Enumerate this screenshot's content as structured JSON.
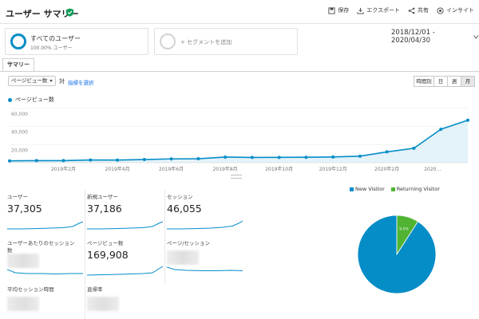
{
  "header": {
    "title": "ユーザー サマリー",
    "actions": [
      {
        "label": "保存",
        "icon": "save-icon"
      },
      {
        "label": "エクスポート",
        "icon": "export-icon"
      },
      {
        "label": "共有",
        "icon": "share-icon"
      },
      {
        "label": "インサイト",
        "icon": "insights-icon"
      }
    ]
  },
  "segments": {
    "active": {
      "name": "すべてのユーザー",
      "sub": "100.00% ユーザー"
    },
    "add_label": "+ セグメントを追加"
  },
  "date_range": "2018/12/01 - 2020/04/30",
  "tabs": {
    "summary": "サマリー"
  },
  "controls": {
    "metric": "ページビュー数",
    "vs": "対",
    "select_metric": "指標を選択",
    "periods": [
      "時間別",
      "日",
      "週",
      "月"
    ],
    "active_period": "月"
  },
  "chart_data": {
    "type": "area",
    "series": [
      {
        "name": "ページビュー数",
        "values": [
          2000,
          2300,
          2300,
          3000,
          2900,
          3500,
          4200,
          4400,
          6200,
          5800,
          5900,
          6000,
          6300,
          7200,
          12000,
          16000,
          37000,
          47000
        ]
      }
    ],
    "color": "#058dc7",
    "x_tick_labels": [
      "2019年2月",
      "2019年4月",
      "2019年6月",
      "2019年8月",
      "2019年10月",
      "2019年12月",
      "2020年2月",
      "2020..."
    ],
    "y_tick_labels": [
      "60,000",
      "40,000",
      "20,000"
    ],
    "ylim": [
      0,
      60000
    ]
  },
  "metrics": [
    {
      "label": "ユーザー",
      "value": "37,305"
    },
    {
      "label": "新規ユーザー",
      "value": "37,186"
    },
    {
      "label": "セッション",
      "value": "46,055"
    },
    {
      "label": "ユーザーあたりのセッション数",
      "value": ""
    },
    {
      "label": "ページビュー数",
      "value": "169,908"
    },
    {
      "label": "ページ/セッション",
      "value": ""
    },
    {
      "label": "平均セッション時間",
      "value": ""
    },
    {
      "label": "直帰率",
      "value": ""
    }
  ],
  "pie": {
    "legend": [
      {
        "name": "New Visitor",
        "color": "#058dc7"
      },
      {
        "name": "Returning Visitor",
        "color": "#50b432"
      }
    ],
    "slices": [
      {
        "name": "New Visitor",
        "value": 90.9,
        "label": "90.9%"
      },
      {
        "name": "Returning Visitor",
        "value": 9.1,
        "label": "9.1%"
      }
    ]
  }
}
